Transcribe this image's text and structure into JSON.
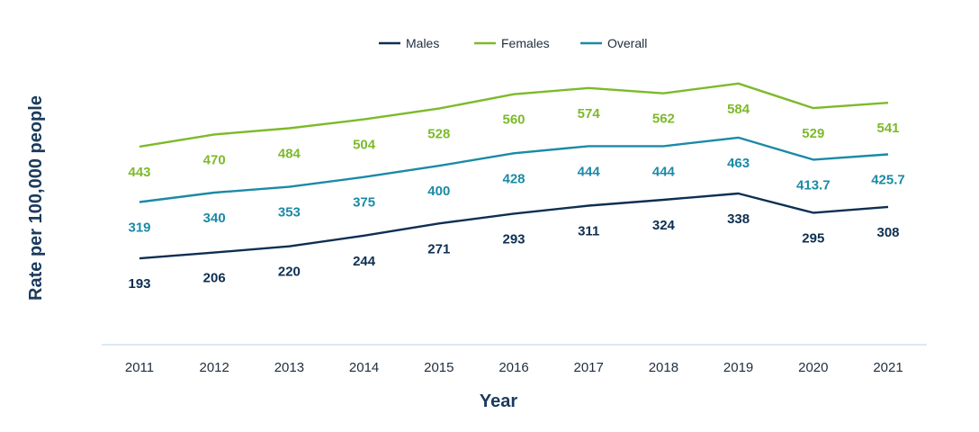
{
  "chart_data": {
    "type": "line",
    "title": "",
    "xlabel": "Year",
    "ylabel": "Rate per 100,000 people",
    "x": [
      "2011",
      "2012",
      "2013",
      "2014",
      "2015",
      "2016",
      "2017",
      "2018",
      "2019",
      "2020",
      "2021"
    ],
    "ylim": [
      0,
      650
    ],
    "grid": false,
    "legend": "top-center",
    "series": [
      {
        "name": "Males",
        "color": "#0d2f52",
        "values": [
          193,
          206,
          220,
          244,
          271,
          293,
          311,
          324,
          338,
          295,
          308
        ],
        "labels": [
          "193",
          "206",
          "220",
          "244",
          "271",
          "293",
          "311",
          "324",
          "338",
          "295",
          "308"
        ]
      },
      {
        "name": "Females",
        "color": "#7cba2a",
        "values": [
          443,
          470,
          484,
          504,
          528,
          560,
          574,
          562,
          584,
          529,
          541
        ],
        "labels": [
          "443",
          "470",
          "484",
          "504",
          "528",
          "560",
          "574",
          "562",
          "584",
          "529",
          "541"
        ]
      },
      {
        "name": "Overall",
        "color": "#1b8aa6",
        "values": [
          319,
          340,
          353,
          375,
          400,
          428,
          444,
          444,
          463,
          413.7,
          425.7
        ],
        "labels": [
          "319",
          "340",
          "353",
          "375",
          "400",
          "428",
          "444",
          "444",
          "463",
          "413.7",
          "425.7"
        ]
      }
    ]
  }
}
